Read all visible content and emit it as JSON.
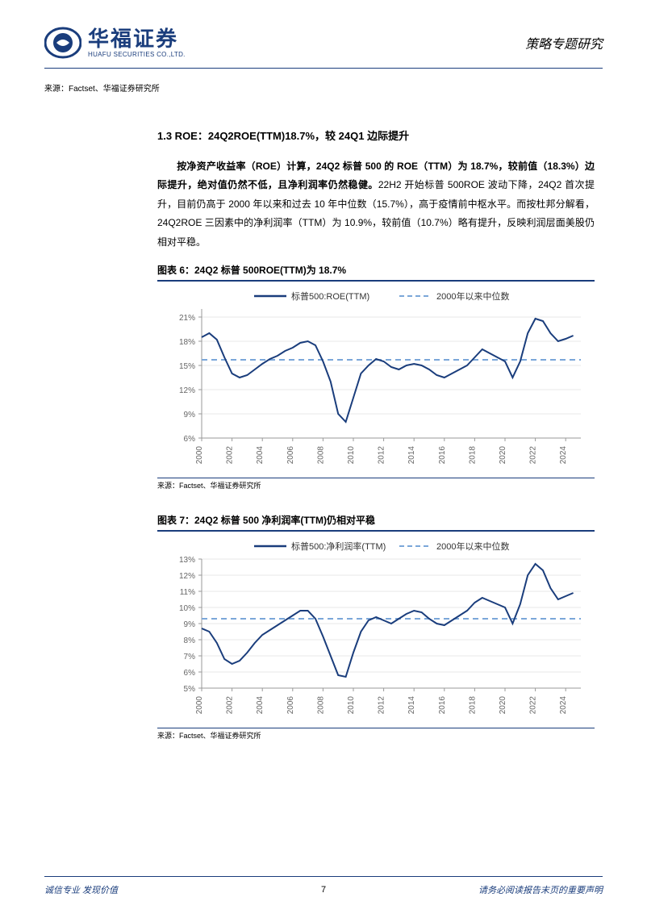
{
  "header": {
    "company_cn": "华福证券",
    "company_en": "HUAFU SECURITIES CO.,LTD.",
    "report_type": "策略专题研究",
    "logo_color": "#1a3d7c"
  },
  "source_top": "来源：Factset、华福证券研究所",
  "section": {
    "title": "1.3 ROE：24Q2ROE(TTM)18.7%，较 24Q1 边际提升",
    "para_bold": "按净资产收益率（ROE）计算，24Q2 标普 500 的 ROE（TTM）为 18.7%，较前值（18.3%）边际提升，绝对值仍然不低，且净利润率仍然稳健。",
    "para_rest": "22H2 开始标普 500ROE 波动下降，24Q2 首次提升，目前仍高于 2000 年以来和过去 10 年中位数（15.7%），高于疫情前中枢水平。而按杜邦分解看，24Q2ROE 三因素中的净利润率（TTM）为 10.9%，较前值（10.7%）略有提升，反映利润层面美股仍相对平稳。"
  },
  "chart6": {
    "title": "图表 6：24Q2 标普 500ROE(TTM)为 18.7%",
    "type": "line",
    "legend": {
      "series1": "标普500:ROE(TTM)",
      "series2": "2000年以来中位数"
    },
    "x_labels": [
      "2000",
      "2002",
      "2004",
      "2006",
      "2008",
      "2010",
      "2012",
      "2014",
      "2016",
      "2018",
      "2020",
      "2022",
      "2024"
    ],
    "y_labels": [
      "6%",
      "9%",
      "12%",
      "15%",
      "18%",
      "21%"
    ],
    "ylim": [
      6,
      22
    ],
    "median_value": 15.7,
    "series_color": "#1a3d7c",
    "median_color": "#7ba7d9",
    "grid_color": "#d0d0d0",
    "axis_color": "#999999",
    "text_color": "#666666",
    "line_width": 2,
    "data": [
      {
        "x": 2000.0,
        "y": 18.5
      },
      {
        "x": 2000.5,
        "y": 19.0
      },
      {
        "x": 2001.0,
        "y": 18.2
      },
      {
        "x": 2001.5,
        "y": 16.0
      },
      {
        "x": 2002.0,
        "y": 14.0
      },
      {
        "x": 2002.5,
        "y": 13.5
      },
      {
        "x": 2003.0,
        "y": 13.8
      },
      {
        "x": 2003.5,
        "y": 14.5
      },
      {
        "x": 2004.0,
        "y": 15.2
      },
      {
        "x": 2004.5,
        "y": 15.8
      },
      {
        "x": 2005.0,
        "y": 16.2
      },
      {
        "x": 2005.5,
        "y": 16.8
      },
      {
        "x": 2006.0,
        "y": 17.2
      },
      {
        "x": 2006.5,
        "y": 17.8
      },
      {
        "x": 2007.0,
        "y": 18.0
      },
      {
        "x": 2007.5,
        "y": 17.5
      },
      {
        "x": 2008.0,
        "y": 15.5
      },
      {
        "x": 2008.5,
        "y": 13.0
      },
      {
        "x": 2009.0,
        "y": 9.0
      },
      {
        "x": 2009.5,
        "y": 8.0
      },
      {
        "x": 2010.0,
        "y": 11.0
      },
      {
        "x": 2010.5,
        "y": 14.0
      },
      {
        "x": 2011.0,
        "y": 15.0
      },
      {
        "x": 2011.5,
        "y": 15.8
      },
      {
        "x": 2012.0,
        "y": 15.5
      },
      {
        "x": 2012.5,
        "y": 14.8
      },
      {
        "x": 2013.0,
        "y": 14.5
      },
      {
        "x": 2013.5,
        "y": 15.0
      },
      {
        "x": 2014.0,
        "y": 15.2
      },
      {
        "x": 2014.5,
        "y": 15.0
      },
      {
        "x": 2015.0,
        "y": 14.5
      },
      {
        "x": 2015.5,
        "y": 13.8
      },
      {
        "x": 2016.0,
        "y": 13.5
      },
      {
        "x": 2016.5,
        "y": 14.0
      },
      {
        "x": 2017.0,
        "y": 14.5
      },
      {
        "x": 2017.5,
        "y": 15.0
      },
      {
        "x": 2018.0,
        "y": 16.0
      },
      {
        "x": 2018.5,
        "y": 17.0
      },
      {
        "x": 2019.0,
        "y": 16.5
      },
      {
        "x": 2019.5,
        "y": 16.0
      },
      {
        "x": 2020.0,
        "y": 15.5
      },
      {
        "x": 2020.5,
        "y": 13.5
      },
      {
        "x": 2021.0,
        "y": 15.5
      },
      {
        "x": 2021.5,
        "y": 19.0
      },
      {
        "x": 2022.0,
        "y": 20.8
      },
      {
        "x": 2022.5,
        "y": 20.5
      },
      {
        "x": 2023.0,
        "y": 19.0
      },
      {
        "x": 2023.5,
        "y": 18.0
      },
      {
        "x": 2024.0,
        "y": 18.3
      },
      {
        "x": 2024.5,
        "y": 18.7
      }
    ],
    "source": "来源：Factset、华福证券研究所"
  },
  "chart7": {
    "title": "图表 7：24Q2 标普 500 净利润率(TTM)仍相对平稳",
    "type": "line",
    "legend": {
      "series1": "标普500:净利润率(TTM)",
      "series2": "2000年以来中位数"
    },
    "x_labels": [
      "2000",
      "2002",
      "2004",
      "2006",
      "2008",
      "2010",
      "2012",
      "2014",
      "2016",
      "2018",
      "2020",
      "2022",
      "2024"
    ],
    "y_labels": [
      "5%",
      "6%",
      "7%",
      "8%",
      "9%",
      "10%",
      "11%",
      "12%",
      "13%"
    ],
    "ylim": [
      5,
      13
    ],
    "median_value": 9.3,
    "series_color": "#1a3d7c",
    "median_color": "#7ba7d9",
    "grid_color": "#d0d0d0",
    "axis_color": "#999999",
    "text_color": "#666666",
    "line_width": 2,
    "data": [
      {
        "x": 2000.0,
        "y": 8.7
      },
      {
        "x": 2000.5,
        "y": 8.5
      },
      {
        "x": 2001.0,
        "y": 7.8
      },
      {
        "x": 2001.5,
        "y": 6.8
      },
      {
        "x": 2002.0,
        "y": 6.5
      },
      {
        "x": 2002.5,
        "y": 6.7
      },
      {
        "x": 2003.0,
        "y": 7.2
      },
      {
        "x": 2003.5,
        "y": 7.8
      },
      {
        "x": 2004.0,
        "y": 8.3
      },
      {
        "x": 2004.5,
        "y": 8.6
      },
      {
        "x": 2005.0,
        "y": 8.9
      },
      {
        "x": 2005.5,
        "y": 9.2
      },
      {
        "x": 2006.0,
        "y": 9.5
      },
      {
        "x": 2006.5,
        "y": 9.8
      },
      {
        "x": 2007.0,
        "y": 9.8
      },
      {
        "x": 2007.5,
        "y": 9.3
      },
      {
        "x": 2008.0,
        "y": 8.2
      },
      {
        "x": 2008.5,
        "y": 7.0
      },
      {
        "x": 2009.0,
        "y": 5.8
      },
      {
        "x": 2009.5,
        "y": 5.7
      },
      {
        "x": 2010.0,
        "y": 7.2
      },
      {
        "x": 2010.5,
        "y": 8.5
      },
      {
        "x": 2011.0,
        "y": 9.2
      },
      {
        "x": 2011.5,
        "y": 9.4
      },
      {
        "x": 2012.0,
        "y": 9.2
      },
      {
        "x": 2012.5,
        "y": 9.0
      },
      {
        "x": 2013.0,
        "y": 9.3
      },
      {
        "x": 2013.5,
        "y": 9.6
      },
      {
        "x": 2014.0,
        "y": 9.8
      },
      {
        "x": 2014.5,
        "y": 9.7
      },
      {
        "x": 2015.0,
        "y": 9.3
      },
      {
        "x": 2015.5,
        "y": 9.0
      },
      {
        "x": 2016.0,
        "y": 8.9
      },
      {
        "x": 2016.5,
        "y": 9.2
      },
      {
        "x": 2017.0,
        "y": 9.5
      },
      {
        "x": 2017.5,
        "y": 9.8
      },
      {
        "x": 2018.0,
        "y": 10.3
      },
      {
        "x": 2018.5,
        "y": 10.6
      },
      {
        "x": 2019.0,
        "y": 10.4
      },
      {
        "x": 2019.5,
        "y": 10.2
      },
      {
        "x": 2020.0,
        "y": 10.0
      },
      {
        "x": 2020.5,
        "y": 9.0
      },
      {
        "x": 2021.0,
        "y": 10.2
      },
      {
        "x": 2021.5,
        "y": 12.0
      },
      {
        "x": 2022.0,
        "y": 12.7
      },
      {
        "x": 2022.5,
        "y": 12.3
      },
      {
        "x": 2023.0,
        "y": 11.2
      },
      {
        "x": 2023.5,
        "y": 10.5
      },
      {
        "x": 2024.0,
        "y": 10.7
      },
      {
        "x": 2024.5,
        "y": 10.9
      }
    ],
    "source": "来源：Factset、华福证券研究所"
  },
  "footer": {
    "left": "诚信专业   发现价值",
    "page": "7",
    "right": "请务必阅读报告末页的重要声明"
  }
}
